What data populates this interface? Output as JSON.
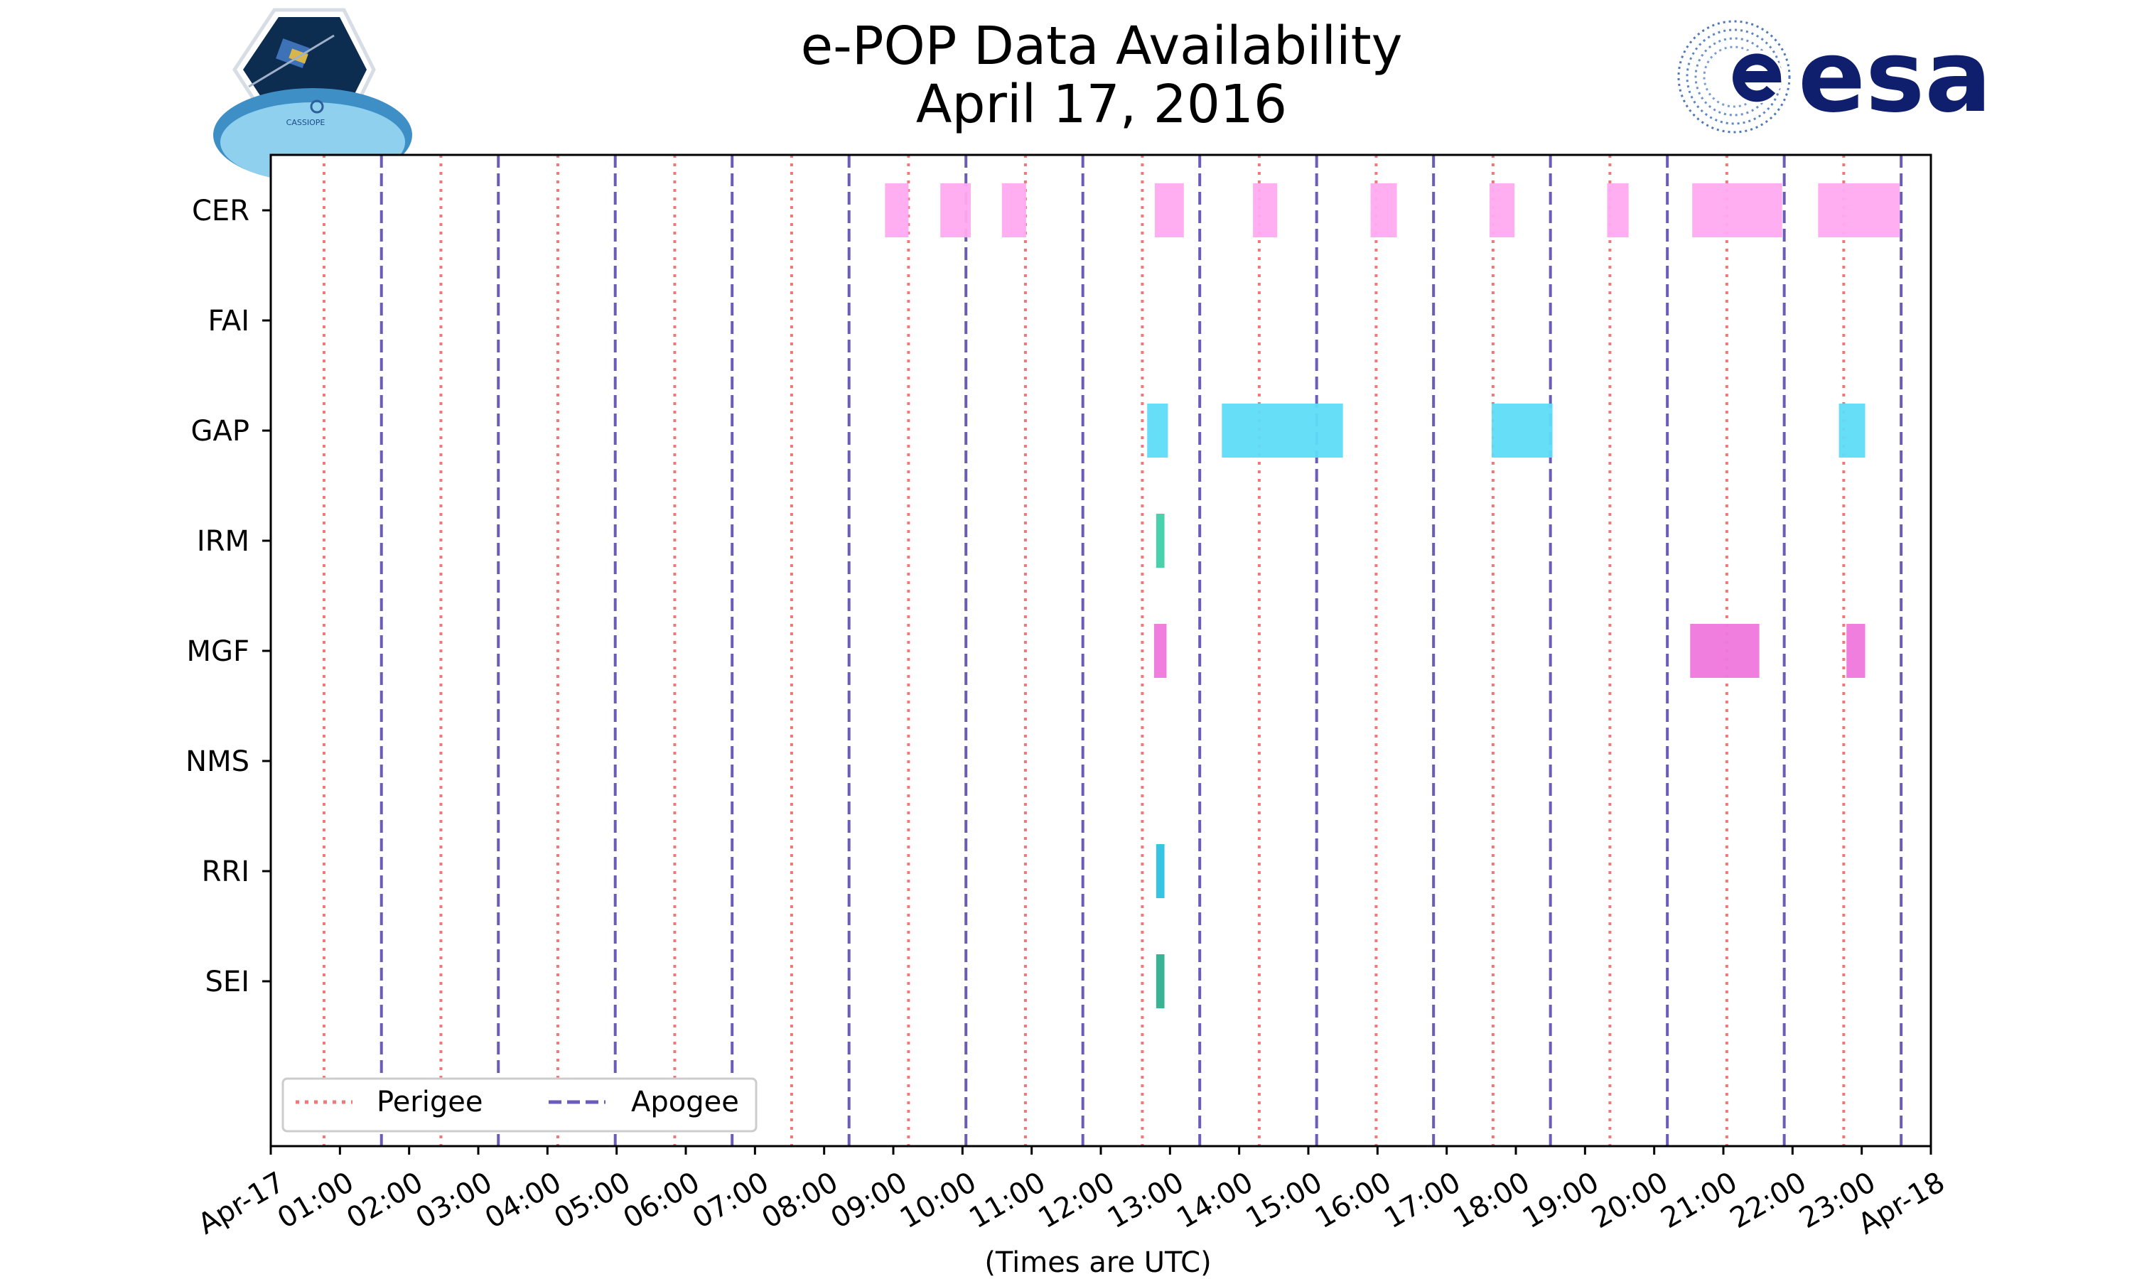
{
  "chart_data": {
    "type": "timeline",
    "title": "e-POP Data Availability",
    "subtitle": "April 17, 2016",
    "xlabel": "(Times are UTC)",
    "x_domain_hours": [
      0,
      24
    ],
    "x_ticks": [
      {
        "hour": 0,
        "label": "Apr-17"
      },
      {
        "hour": 1,
        "label": "01:00"
      },
      {
        "hour": 2,
        "label": "02:00"
      },
      {
        "hour": 3,
        "label": "03:00"
      },
      {
        "hour": 4,
        "label": "04:00"
      },
      {
        "hour": 5,
        "label": "05:00"
      },
      {
        "hour": 6,
        "label": "06:00"
      },
      {
        "hour": 7,
        "label": "07:00"
      },
      {
        "hour": 8,
        "label": "08:00"
      },
      {
        "hour": 9,
        "label": "09:00"
      },
      {
        "hour": 10,
        "label": "10:00"
      },
      {
        "hour": 11,
        "label": "11:00"
      },
      {
        "hour": 12,
        "label": "12:00"
      },
      {
        "hour": 13,
        "label": "13:00"
      },
      {
        "hour": 14,
        "label": "14:00"
      },
      {
        "hour": 15,
        "label": "15:00"
      },
      {
        "hour": 16,
        "label": "16:00"
      },
      {
        "hour": 17,
        "label": "17:00"
      },
      {
        "hour": 18,
        "label": "18:00"
      },
      {
        "hour": 19,
        "label": "19:00"
      },
      {
        "hour": 20,
        "label": "20:00"
      },
      {
        "hour": 21,
        "label": "21:00"
      },
      {
        "hour": 22,
        "label": "22:00"
      },
      {
        "hour": 23,
        "label": "23:00"
      },
      {
        "hour": 24,
        "label": "Apr-18"
      }
    ],
    "instruments": [
      "CER",
      "FAI",
      "GAP",
      "IRM",
      "MGF",
      "NMS",
      "RRI",
      "SEI"
    ],
    "series": [
      {
        "name": "CER",
        "color": "#ffaaf0",
        "intervals": [
          [
            8.88,
            9.22
          ],
          [
            9.68,
            10.12
          ],
          [
            10.57,
            10.92
          ],
          [
            12.78,
            13.2
          ],
          [
            14.2,
            14.55
          ],
          [
            15.9,
            16.28
          ],
          [
            17.62,
            17.98
          ],
          [
            19.32,
            19.63
          ],
          [
            20.55,
            21.85
          ],
          [
            22.37,
            23.55
          ]
        ]
      },
      {
        "name": "FAI",
        "color": "#7fb0ff",
        "intervals": []
      },
      {
        "name": "GAP",
        "color": "#5fdcf7",
        "intervals": [
          [
            12.67,
            12.97
          ],
          [
            13.75,
            15.5
          ],
          [
            17.65,
            18.53
          ],
          [
            22.67,
            23.05
          ]
        ]
      },
      {
        "name": "IRM",
        "color": "#3ecfa6",
        "intervals": [
          [
            12.8,
            12.92
          ]
        ]
      },
      {
        "name": "MGF",
        "color": "#ee77dd",
        "intervals": [
          [
            12.77,
            12.95
          ],
          [
            20.52,
            21.52
          ],
          [
            22.78,
            23.05
          ]
        ]
      },
      {
        "name": "NMS",
        "color": "#b07fe0",
        "intervals": []
      },
      {
        "name": "RRI",
        "color": "#2cc0e0",
        "intervals": [
          [
            12.8,
            12.92
          ]
        ]
      },
      {
        "name": "SEI",
        "color": "#2faf8c",
        "intervals": [
          [
            12.8,
            12.92
          ]
        ]
      }
    ],
    "perigee_hours": [
      0.77,
      2.46,
      4.15,
      5.84,
      7.53,
      9.22,
      10.91,
      12.6,
      14.29,
      15.98,
      17.67,
      19.36,
      21.05,
      22.74
    ],
    "apogee_hours": [
      1.6,
      3.29,
      4.98,
      6.67,
      8.36,
      10.05,
      11.74,
      13.43,
      15.12,
      16.81,
      18.5,
      20.19,
      21.88,
      23.57
    ],
    "perigee_color": "#f07878",
    "apogee_color": "#6a5cb8",
    "legend": {
      "perigee_label": "Perigee",
      "apogee_label": "Apogee",
      "position": "lower-left"
    }
  },
  "logos": {
    "left_caption": "CASSIOPE",
    "right_text": "esa"
  }
}
